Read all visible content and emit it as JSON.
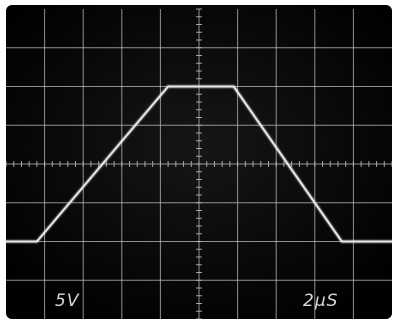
{
  "chart_data": {
    "type": "line",
    "title": "",
    "xlabel": "",
    "ylabel": "",
    "grid": true,
    "divisions": {
      "x": 10,
      "y": 8
    },
    "xlim": [
      0,
      10
    ],
    "ylim": [
      -4,
      4
    ],
    "volts_per_div_label": "5V",
    "time_per_div_label": "2μS",
    "series": [
      {
        "points": [
          {
            "x": 0.0,
            "y": -2.0
          },
          {
            "x": 0.8,
            "y": -2.0
          },
          {
            "x": 4.2,
            "y": 2.0
          },
          {
            "x": 5.9,
            "y": 2.0
          },
          {
            "x": 8.7,
            "y": -2.0
          },
          {
            "x": 10.0,
            "y": -2.0
          }
        ]
      }
    ],
    "colors": {
      "screen": "#050505",
      "grid": "#bdbdbd",
      "trace": "#e8e8e8",
      "label": "#d8d8d8"
    }
  }
}
